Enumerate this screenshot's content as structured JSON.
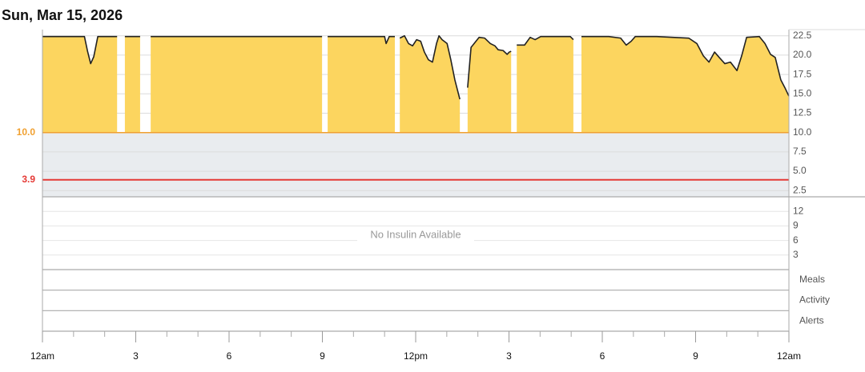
{
  "chart_data": {
    "type": "line",
    "title": "Sun, Mar 15, 2026",
    "x": [
      0,
      1.35,
      1.45,
      1.55,
      1.65,
      1.78,
      2.4,
      2.5,
      2.65,
      3.14,
      3.3,
      3.48,
      8.99,
      9.05,
      9.17,
      11.0,
      11.05,
      11.15,
      11.33,
      11.4,
      11.49,
      11.64,
      11.77,
      11.9,
      12.03,
      12.16,
      12.28,
      12.41,
      12.54,
      12.67,
      12.75,
      12.85,
      13.01,
      13.13,
      13.26,
      13.42,
      13.55,
      13.67,
      13.78,
      13.88,
      14.04,
      14.22,
      14.4,
      14.55,
      14.65,
      14.81,
      14.94,
      15.01,
      15.07,
      15.15,
      15.25,
      15.5,
      15.68,
      15.84,
      16.02,
      16.97,
      17.07,
      17.2,
      17.33,
      18.21,
      18.59,
      18.77,
      18.93,
      19.06,
      19.75,
      20.78,
      21.04,
      21.25,
      21.43,
      21.61,
      21.76,
      21.94,
      22.12,
      22.33,
      22.48,
      22.64,
      23.05,
      23.23,
      23.41,
      23.56,
      23.74,
      23.87,
      24
    ],
    "values": [
      22.4,
      22.4,
      20.5,
      18.9,
      19.8,
      22.4,
      22.4,
      null,
      22.4,
      22.4,
      null,
      22.4,
      22.4,
      null,
      22.4,
      22.4,
      21.5,
      22.4,
      22.4,
      null,
      22.2,
      22.5,
      21.5,
      21.2,
      22.0,
      21.8,
      20.4,
      19.4,
      19.1,
      21.5,
      22.5,
      22.0,
      21.5,
      19.4,
      16.8,
      14.3,
      null,
      15.8,
      21.0,
      21.5,
      22.3,
      22.2,
      21.5,
      21.2,
      20.7,
      20.6,
      20.1,
      20.4,
      20.5,
      null,
      21.3,
      21.3,
      22.3,
      22.0,
      22.4,
      22.4,
      22.0,
      null,
      22.4,
      22.4,
      22.2,
      21.3,
      21.8,
      22.4,
      22.4,
      22.2,
      21.5,
      19.9,
      19.1,
      20.4,
      19.7,
      18.9,
      19.1,
      18.0,
      19.9,
      22.3,
      22.4,
      21.5,
      20.1,
      19.7,
      16.8,
      15.8,
      14.7
    ],
    "color": "#222222",
    "fill_color": "#fcd55f",
    "band_color": "#e9ecef",
    "xlim": [
      0,
      24
    ],
    "xticks": [
      {
        "value": 0,
        "label": "12am"
      },
      3,
      6,
      9,
      {
        "value": 12,
        "label": "12pm"
      },
      {
        "value": 15,
        "label": "3"
      },
      {
        "value": 18,
        "label": "6"
      },
      {
        "value": 21,
        "label": "9"
      },
      {
        "value": 24,
        "label": "12am"
      }
    ],
    "xminorticks": [
      1,
      2,
      4,
      5,
      7,
      8,
      10,
      11,
      13,
      14,
      16,
      17,
      19,
      20,
      22,
      23
    ],
    "ylim": [
      1.7,
      23.3
    ],
    "yticks": [
      22.5,
      {
        "value": 20,
        "label": "20.0"
      },
      17.5,
      {
        "value": 15,
        "label": "15.0"
      },
      12.5,
      {
        "value": 10,
        "label": "10.0"
      },
      7.5,
      {
        "value": 5,
        "label": "5.0"
      },
      2.5
    ],
    "high_threshold": {
      "value": 10,
      "label": "10.0",
      "color": "#f0a030"
    },
    "low_threshold": {
      "value": 3.9,
      "label": "3.9",
      "color": "#e53935"
    },
    "insulin": {
      "ylim": [
        0,
        15
      ],
      "yticks": [
        12,
        9,
        6,
        3
      ],
      "message": "No Insulin Available"
    },
    "rows": [
      "Meals",
      "Activity",
      "Alerts"
    ]
  }
}
